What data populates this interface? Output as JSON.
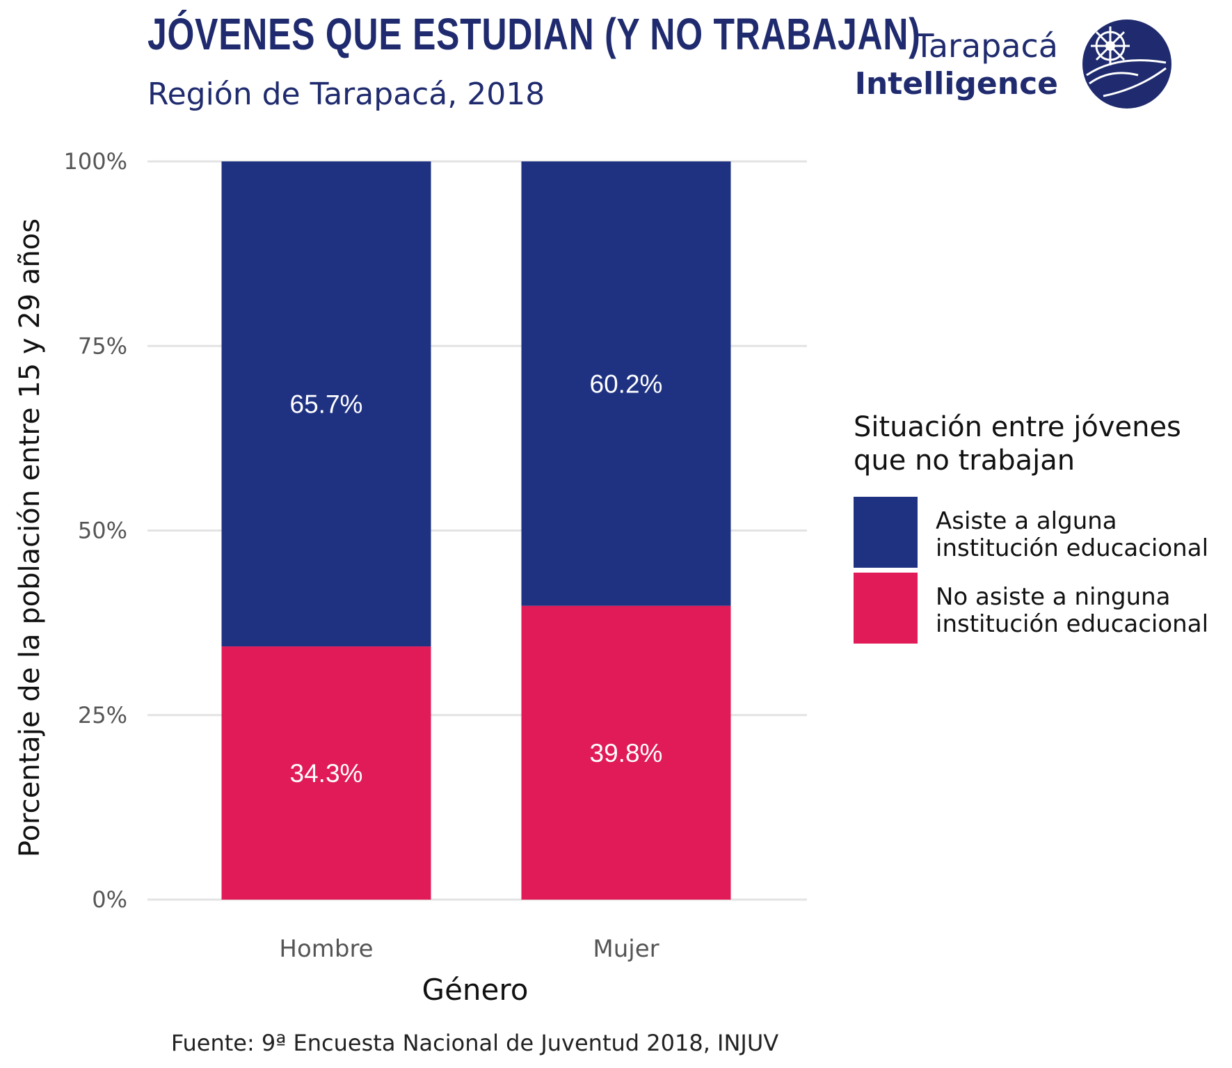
{
  "header": {
    "title": "JÓVENES QUE ESTUDIAN (Y NO TRABAJAN)",
    "subtitle": "Región de Tarapacá, 2018"
  },
  "brand": {
    "line1": "Tarapacá",
    "line2": "Intelligence",
    "logo_icon": "globe-compass-icon"
  },
  "legend": {
    "title": "Situación entre jóvenes\nque no trabajan",
    "items": [
      {
        "label": "Asiste a alguna\ninstitución educacional",
        "color": "#1f3282"
      },
      {
        "label": "No asiste a ninguna\ninstitución educacional",
        "color": "#e01b58"
      }
    ]
  },
  "source": "Fuente: 9ª Encuesta Nacional de Juventud 2018, INJUV",
  "chart_data": {
    "type": "bar",
    "stacked": true,
    "categories": [
      "Hombre",
      "Mujer"
    ],
    "series": [
      {
        "name": "No asiste a ninguna institución educacional",
        "values": [
          34.3,
          39.8
        ],
        "labels": [
          "34.3%",
          "39.8%"
        ],
        "color": "#e01b58"
      },
      {
        "name": "Asiste a alguna institución educacional",
        "values": [
          65.7,
          60.2
        ],
        "labels": [
          "65.7%",
          "60.2%"
        ],
        "color": "#1f3282"
      }
    ],
    "xlabel": "Género",
    "ylabel": "Porcentaje de la población entre 15 y 29 años",
    "ylim": [
      0,
      100
    ],
    "yticks": [
      0,
      25,
      50,
      75,
      100
    ],
    "ytick_labels": [
      "0%",
      "25%",
      "50%",
      "75%",
      "100%"
    ],
    "grid": true,
    "legend_position": "right"
  }
}
